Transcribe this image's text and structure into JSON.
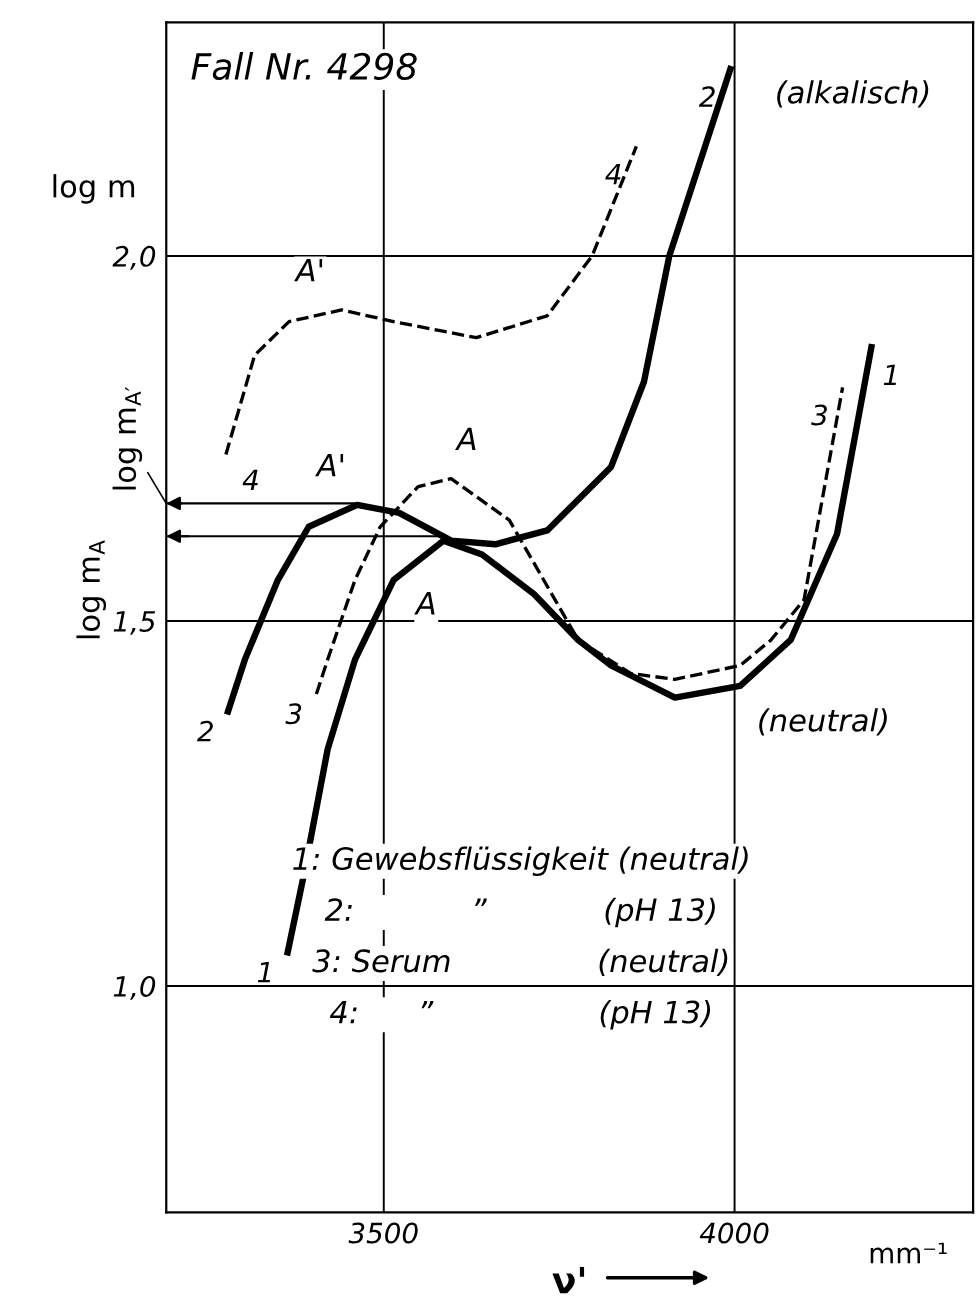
{
  "chart_data": {
    "type": "line",
    "xlabel": "ν'",
    "ylabel": "log m",
    "xlim": [
      3190,
      4340
    ],
    "ylim": [
      0.69,
      2.32
    ],
    "xticks": [
      3500,
      4000
    ],
    "yticks": [
      {
        "value": 1.0,
        "label": "1,0"
      },
      {
        "value": 1.5,
        "label": "1,5"
      },
      {
        "value": 2.0,
        "label": "2,0"
      }
    ],
    "grid": true,
    "legend": false,
    "marker": "none",
    "series": [
      {
        "name": "1",
        "color": "#000000",
        "line_style": "solid",
        "x": [
          3363,
          3385,
          3420,
          3459,
          3514,
          3585,
          3640,
          3714,
          3777,
          3824,
          3915,
          4008,
          4080,
          4146,
          4195
        ],
        "values": [
          1.046,
          1.147,
          1.324,
          1.447,
          1.556,
          1.61,
          1.591,
          1.537,
          1.474,
          1.439,
          1.395,
          1.411,
          1.474,
          1.619,
          1.875
        ]
      },
      {
        "name": "2",
        "color": "#000000",
        "line_style": "solid",
        "x": [
          3278,
          3302,
          3349,
          3393,
          3462,
          3522,
          3596,
          3659,
          3733,
          3824,
          3871,
          3907,
          3994
        ],
        "values": [
          1.376,
          1.447,
          1.556,
          1.629,
          1.659,
          1.648,
          1.61,
          1.605,
          1.624,
          1.711,
          1.828,
          2.0,
          2.256
        ]
      },
      {
        "name": "3",
        "color": "#000000",
        "line_style": "dashed",
        "x": [
          3404,
          3420,
          3459,
          3495,
          3549,
          3596,
          3679,
          3777,
          3852,
          3915,
          4008,
          4052,
          4099,
          4154
        ],
        "values": [
          1.4,
          1.447,
          1.556,
          1.629,
          1.684,
          1.695,
          1.638,
          1.474,
          1.428,
          1.42,
          1.439,
          1.474,
          1.529,
          1.82
        ]
      },
      {
        "name": "4",
        "color": "#000000",
        "line_style": "dashed",
        "x": [
          3275,
          3316,
          3365,
          3440,
          3514,
          3632,
          3733,
          3797,
          3860
        ],
        "values": [
          1.728,
          1.864,
          1.91,
          1.926,
          1.91,
          1.888,
          1.918,
          2.0,
          2.15
        ]
      }
    ],
    "ref_lines": [
      {
        "axis": "y",
        "value": 1.661,
        "label": "log m$_{A′}$"
      },
      {
        "axis": "y",
        "value": 1.616,
        "label": "log m$_{A}$"
      }
    ],
    "annotations": [
      "Fall Nr. 4298",
      "mm⁻¹",
      "1: Gewebsflüssigkeit (neutral)",
      "2:            ”            (pH 13)",
      "3: Serum               (neutral)",
      "4:      ”                 (pH 13)",
      {
        "text": "A'",
        "x": 3440,
        "y": 1.926
      },
      {
        "text": "A'",
        "x": 3462,
        "y": 1.659
      },
      {
        "text": "A",
        "x": 3596,
        "y": 1.695
      },
      {
        "text": "A",
        "x": 3514,
        "y": 1.556
      },
      {
        "text": "(alkalisch)",
        "x": 3994,
        "y": 2.256
      },
      {
        "text": "(neutral)",
        "x": 4008,
        "y": 1.411
      }
    ]
  }
}
